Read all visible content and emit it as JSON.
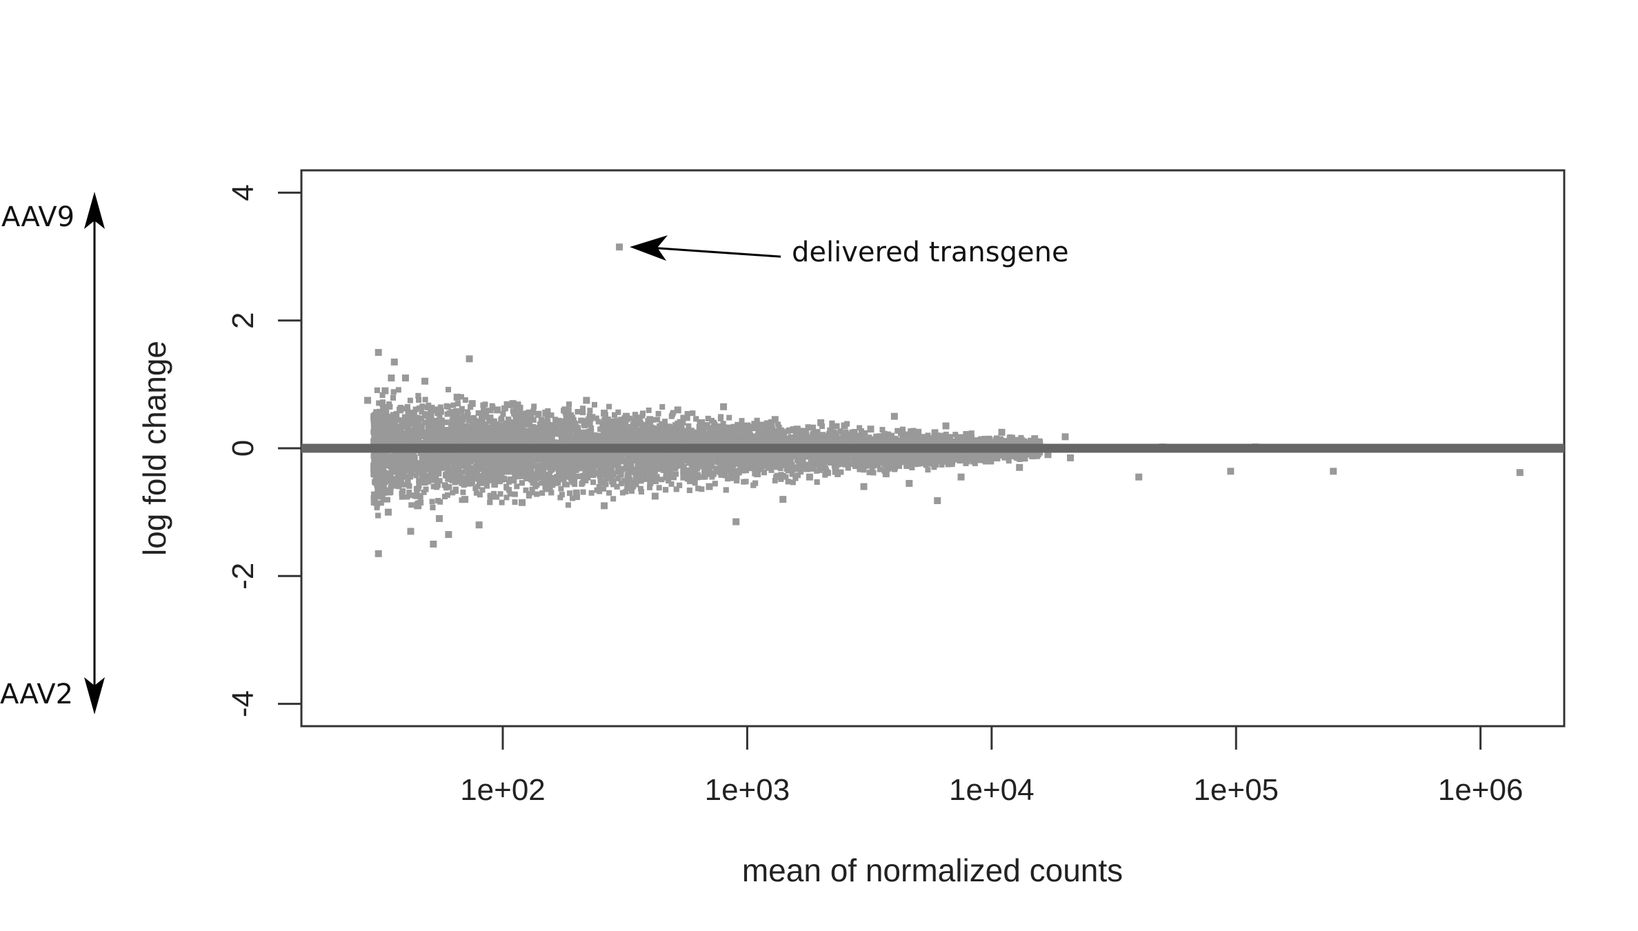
{
  "chart_data": {
    "type": "scatter",
    "title": "",
    "xlabel": "mean of normalized counts",
    "ylabel": "log fold change",
    "x_scale": "log10",
    "xlim": [
      15,
      2200000
    ],
    "ylim": [
      -4.35,
      4.35
    ],
    "x_ticks": [
      100,
      1000,
      10000,
      100000,
      1000000
    ],
    "x_tick_labels": [
      "1e+02",
      "1e+03",
      "1e+04",
      "1e+05",
      "1e+06"
    ],
    "y_ticks": [
      4,
      2,
      0,
      -2,
      -4
    ],
    "y_tick_labels": [
      "4",
      "2",
      "0",
      "-2",
      "-4"
    ],
    "grid": false,
    "reference_line_y": 0,
    "point_color": "#999999",
    "reference_line_color": "#666666",
    "direction_labels": {
      "up": "AAV9",
      "down": "AAV2"
    },
    "annotation": {
      "text": "delivered transgene",
      "x": 300,
      "y": 3.15
    },
    "series": [
      {
        "points": [
          [
            300,
            3.15
          ],
          [
            31,
            1.5
          ],
          [
            35,
            1.1
          ],
          [
            33,
            0.9
          ],
          [
            36,
            1.35
          ],
          [
            73,
            1.4
          ],
          [
            40,
            1.1
          ],
          [
            48,
            1.05
          ],
          [
            28,
            0.75
          ],
          [
            30,
            0.5
          ],
          [
            32,
            -0.65
          ],
          [
            31,
            -1.65
          ],
          [
            34,
            -1.0
          ],
          [
            42,
            -1.3
          ],
          [
            52,
            -1.5
          ],
          [
            60,
            -1.35
          ],
          [
            80,
            -1.2
          ],
          [
            38,
            0.6
          ],
          [
            45,
            0.4
          ],
          [
            55,
            0.6
          ],
          [
            65,
            0.8
          ],
          [
            75,
            0.7
          ],
          [
            85,
            0.5
          ],
          [
            95,
            0.6
          ],
          [
            110,
            0.7
          ],
          [
            130,
            0.5
          ],
          [
            150,
            0.55
          ],
          [
            180,
            0.6
          ],
          [
            220,
            0.75
          ],
          [
            260,
            0.55
          ],
          [
            320,
            0.5
          ],
          [
            400,
            0.45
          ],
          [
            520,
            0.6
          ],
          [
            650,
            0.4
          ],
          [
            800,
            0.65
          ],
          [
            1000,
            0.35
          ],
          [
            1300,
            0.45
          ],
          [
            1600,
            0.3
          ],
          [
            2000,
            0.4
          ],
          [
            2500,
            0.35
          ],
          [
            3200,
            0.3
          ],
          [
            4000,
            0.5
          ],
          [
            5000,
            0.25
          ],
          [
            6500,
            0.35
          ],
          [
            8000,
            0.2
          ],
          [
            11000,
            0.25
          ],
          [
            15000,
            0.15
          ],
          [
            20000,
            0.18
          ],
          [
            45,
            -0.9
          ],
          [
            55,
            -1.1
          ],
          [
            70,
            -0.8
          ],
          [
            90,
            -0.75
          ],
          [
            120,
            -0.85
          ],
          [
            150,
            -0.6
          ],
          [
            200,
            -0.7
          ],
          [
            260,
            -0.9
          ],
          [
            330,
            -0.5
          ],
          [
            420,
            -0.75
          ],
          [
            550,
            -0.45
          ],
          [
            700,
            -0.6
          ],
          [
            900,
            -1.15
          ],
          [
            1100,
            -0.4
          ],
          [
            1400,
            -0.8
          ],
          [
            1800,
            -0.45
          ],
          [
            2300,
            -0.35
          ],
          [
            3000,
            -0.6
          ],
          [
            3700,
            -0.4
          ],
          [
            4600,
            -0.55
          ],
          [
            6000,
            -0.82
          ],
          [
            7500,
            -0.45
          ],
          [
            9500,
            -0.2
          ],
          [
            13000,
            -0.3
          ],
          [
            17000,
            -0.1
          ],
          [
            21000,
            -0.15
          ],
          [
            40000,
            -0.45
          ],
          [
            95000,
            -0.36
          ],
          [
            250000,
            -0.36
          ],
          [
            1450000,
            -0.38
          ],
          [
            50000,
            0.02
          ],
          [
            70000,
            0.01
          ],
          [
            120000,
            0.02
          ],
          [
            600000,
            0.01
          ]
        ]
      }
    ]
  }
}
